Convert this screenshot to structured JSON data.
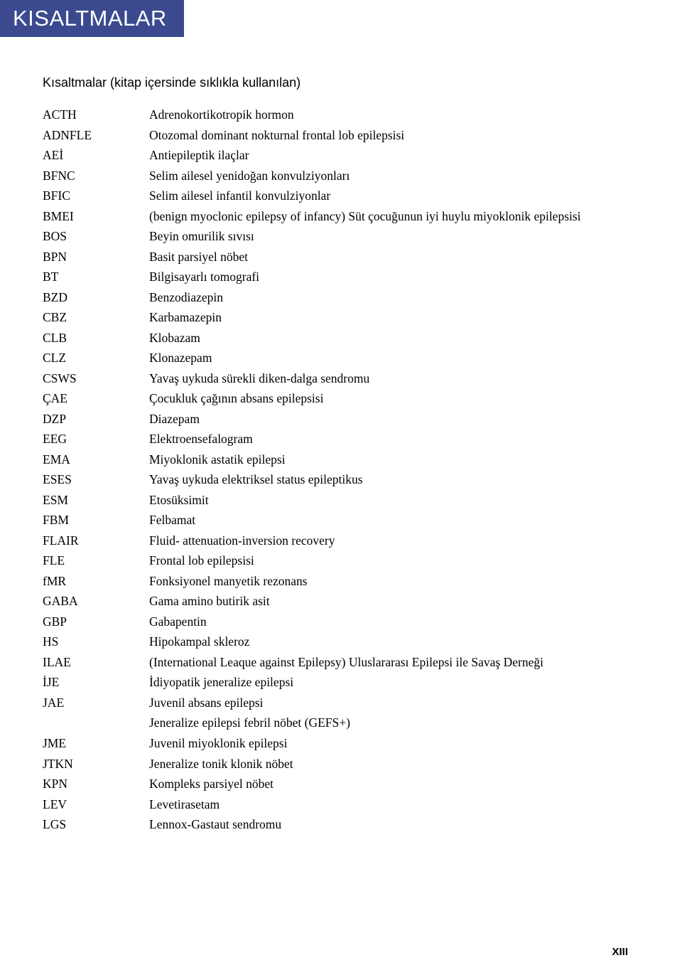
{
  "header": {
    "title": "KISALTMALAR"
  },
  "subtitle": "Kısaltmalar (kitap içersinde sıklıkla kullanılan)",
  "abbreviations": [
    {
      "code": "ACTH",
      "def": "Adrenokortikotropik hormon"
    },
    {
      "code": "ADNFLE",
      "def": "Otozomal dominant nokturnal frontal lob epilepsisi"
    },
    {
      "code": "AEİ",
      "def": "Antiepileptik ilaçlar"
    },
    {
      "code": "BFNC",
      "def": "Selim ailesel yenidoğan konvulziyonları"
    },
    {
      "code": "BFIC",
      "def": "Selim ailesel infantil konvulziyonlar"
    },
    {
      "code": "BMEI",
      "def": "(benign myoclonic epilepsy of infancy) Süt çocuğunun iyi huylu miyoklonik epilepsisi"
    },
    {
      "code": "BOS",
      "def": "Beyin omurilik sıvısı"
    },
    {
      "code": "BPN",
      "def": "Basit parsiyel nöbet"
    },
    {
      "code": "BT",
      "def": "Bilgisayarlı tomografi"
    },
    {
      "code": "BZD",
      "def": "Benzodiazepin"
    },
    {
      "code": "CBZ",
      "def": "Karbamazepin"
    },
    {
      "code": "CLB",
      "def": "Klobazam"
    },
    {
      "code": "CLZ",
      "def": "Klonazepam"
    },
    {
      "code": "CSWS",
      "def": "Yavaş uykuda sürekli diken-dalga sendromu"
    },
    {
      "code": "ÇAE",
      "def": "Çocukluk çağının absans epilepsisi"
    },
    {
      "code": "DZP",
      "def": "Diazepam"
    },
    {
      "code": "EEG",
      "def": "Elektroensefalogram"
    },
    {
      "code": "EMA",
      "def": "Miyoklonik astatik epilepsi"
    },
    {
      "code": "ESES",
      "def": "Yavaş uykuda elektriksel status epileptikus"
    },
    {
      "code": "ESM",
      "def": "Etosüksimit"
    },
    {
      "code": "FBM",
      "def": "Felbamat"
    },
    {
      "code": "FLAIR",
      "def": "Fluid- attenuation-inversion recovery"
    },
    {
      "code": "FLE",
      "def": "Frontal lob epilepsisi"
    },
    {
      "code": "fMR",
      "def": "Fonksiyonel manyetik rezonans"
    },
    {
      "code": "GABA",
      "def": "Gama amino butirik asit"
    },
    {
      "code": "GBP",
      "def": "Gabapentin"
    },
    {
      "code": "HS",
      "def": "Hipokampal skleroz"
    },
    {
      "code": "ILAE",
      "def": "(International Leaque against Epilepsy) Uluslararası Epilepsi ile Savaş Derneği"
    },
    {
      "code": "İJE",
      "def": "İdiyopatik jeneralize epilepsi"
    },
    {
      "code": "JAE",
      "def": "Juvenil absans epilepsi"
    },
    {
      "code": "",
      "def": "Jeneralize epilepsi febril nöbet (GEFS+)"
    },
    {
      "code": "JME",
      "def": "Juvenil miyoklonik epilepsi"
    },
    {
      "code": "JTKN",
      "def": "Jeneralize tonik klonik nöbet"
    },
    {
      "code": "KPN",
      "def": "Kompleks parsiyel nöbet"
    },
    {
      "code": "LEV",
      "def": "Levetirasetam"
    },
    {
      "code": "LGS",
      "def": "Lennox-Gastaut sendromu"
    }
  ],
  "pageNumber": "XIII",
  "colors": {
    "headerBackground": "#3b4a8f",
    "headerText": "#ffffff",
    "bodyText": "#000000",
    "pageBackground": "#ffffff"
  },
  "typography": {
    "headerFontSize": 31,
    "subtitleFontSize": 18,
    "bodyFontSize": 17.5,
    "bodyLineHeight": 1.63,
    "headerFontFamily": "Arial, Helvetica, sans-serif",
    "bodyFontFamily": "Georgia, Times New Roman, serif"
  },
  "layout": {
    "codeColumnWidth": 150,
    "contentPaddingLeft": 60,
    "contentPaddingRight": 60,
    "contentPaddingTop": 54
  }
}
